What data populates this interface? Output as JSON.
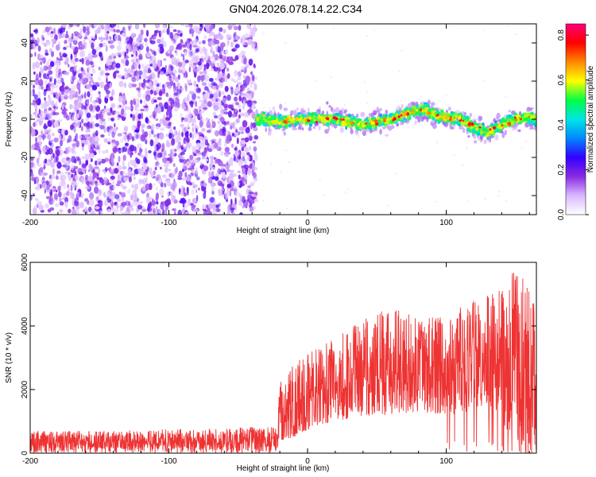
{
  "title": "GN04.2026.078.14.22.C34",
  "chart_data": [
    {
      "type": "heatmap",
      "name": "spectrogram",
      "xlabel": "Height of straight line (km)",
      "ylabel": "Frequency (Hz)",
      "xlim": [
        -200,
        165
      ],
      "ylim": [
        -50,
        50
      ],
      "xticks": [
        -200,
        -100,
        0,
        100
      ],
      "yticks": [
        -40,
        -20,
        0,
        20,
        40
      ],
      "noise_region_x": [
        -200,
        -37
      ],
      "signal_start_x": -37,
      "signal_band_hz": [
        -15,
        12
      ],
      "signal_center_track": [
        [
          -35,
          0
        ],
        [
          -20,
          -1
        ],
        [
          0,
          0
        ],
        [
          10,
          0
        ],
        [
          20,
          0
        ],
        [
          40,
          -3
        ],
        [
          60,
          0
        ],
        [
          75,
          4
        ],
        [
          85,
          5
        ],
        [
          95,
          1
        ],
        [
          110,
          0
        ],
        [
          120,
          -4
        ],
        [
          130,
          -7
        ],
        [
          140,
          -3
        ],
        [
          150,
          0
        ],
        [
          160,
          1
        ],
        [
          165,
          0
        ]
      ],
      "colorbar": {
        "label": "Normalized spectral amplitude",
        "min": 0.0,
        "max": 0.85,
        "ticks": [
          "0.0",
          "0.2",
          "0.4",
          "0.6",
          "0.8"
        ],
        "tick_values": [
          0.0,
          0.2,
          0.4,
          0.6,
          0.8
        ],
        "colormap": [
          "#ffffff",
          "#d9b8ff",
          "#8a2be2",
          "#3300ff",
          "#0088ff",
          "#00e5e5",
          "#00ff44",
          "#ffff00",
          "#ff8800",
          "#ff0000",
          "#ff0077"
        ]
      }
    },
    {
      "type": "line",
      "name": "snr",
      "xlabel": "Height of straight line (km)",
      "ylabel": "SNR (10 * v/v)",
      "xlim": [
        -200,
        165
      ],
      "ylim": [
        0,
        6000
      ],
      "xticks": [
        -200,
        -100,
        0,
        100
      ],
      "yticks": [
        0,
        2000,
        4000,
        6000
      ],
      "color": "#ee3333",
      "envelope": {
        "x": [
          -200,
          -150,
          -100,
          -50,
          -22,
          -20,
          -10,
          0,
          20,
          40,
          60,
          80,
          100,
          120,
          140,
          150,
          165
        ],
        "low": [
          0,
          0,
          0,
          0,
          0,
          400,
          500,
          700,
          1000,
          1100,
          1200,
          1300,
          1200,
          1300,
          1000,
          300,
          0
        ],
        "high": [
          700,
          700,
          750,
          800,
          850,
          2200,
          2800,
          3200,
          3600,
          4300,
          4700,
          4200,
          4400,
          4800,
          5200,
          6000,
          4600
        ]
      }
    }
  ]
}
